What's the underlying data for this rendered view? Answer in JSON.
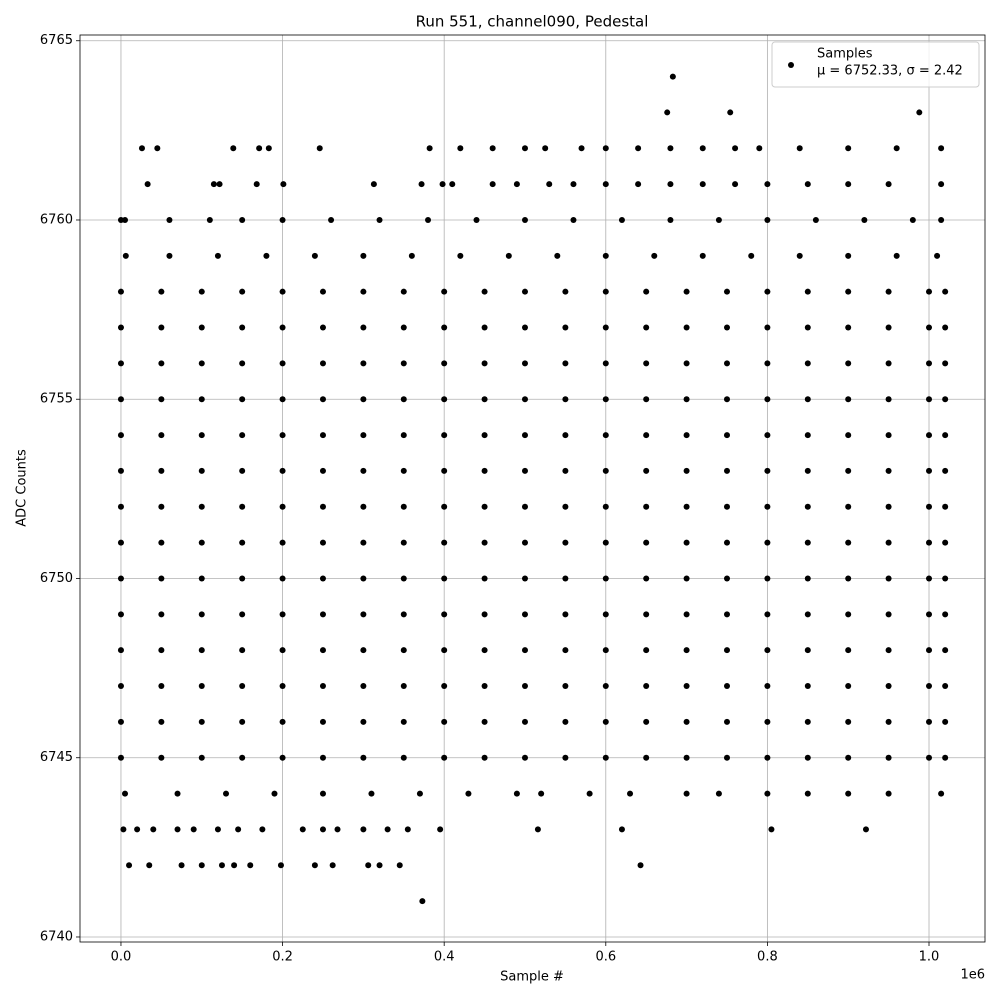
{
  "chart_data": {
    "type": "scatter",
    "title": "Run 551, channel090, Pedestal",
    "x_label": "Sample #",
    "y_label": "ADC Counts",
    "x_offset_label": "1e6",
    "xlim": [
      -50700,
      1069300
    ],
    "ylim": [
      6739.86,
      6765.16
    ],
    "xticks": [
      {
        "value": 0,
        "label": "0.0"
      },
      {
        "value": 200000,
        "label": "0.2"
      },
      {
        "value": 400000,
        "label": "0.4"
      },
      {
        "value": 600000,
        "label": "0.6"
      },
      {
        "value": 800000,
        "label": "0.8"
      },
      {
        "value": 1000000,
        "label": "1.0"
      }
    ],
    "yticks": [
      6740,
      6745,
      6750,
      6755,
      6760,
      6765
    ],
    "grid": true,
    "legend": "upper right",
    "legend_note": "μ = 6752.33, σ = 2.42",
    "series": [
      {
        "name": "Samples",
        "color": "#000000",
        "x": [
          0,
          50000,
          100000,
          150000,
          200000,
          250000,
          300000,
          350000,
          400000,
          450000,
          500000,
          550000,
          600000,
          650000,
          700000,
          750000,
          800000,
          850000,
          900000,
          950000,
          1000000,
          1020000,
          0,
          50000,
          100000,
          150000,
          200000,
          250000,
          300000,
          350000,
          400000,
          450000,
          500000,
          550000,
          600000,
          650000,
          700000,
          750000,
          800000,
          850000,
          900000,
          950000,
          1000000,
          1020000,
          0,
          50000,
          100000,
          150000,
          200000,
          250000,
          300000,
          350000,
          400000,
          450000,
          500000,
          550000,
          600000,
          650000,
          700000,
          750000,
          800000,
          850000,
          900000,
          950000,
          1000000,
          1020000,
          0,
          50000,
          100000,
          150000,
          200000,
          250000,
          300000,
          350000,
          400000,
          450000,
          500000,
          550000,
          600000,
          650000,
          700000,
          750000,
          800000,
          850000,
          900000,
          950000,
          1000000,
          1020000,
          0,
          50000,
          100000,
          150000,
          200000,
          250000,
          300000,
          350000,
          400000,
          450000,
          500000,
          550000,
          600000,
          650000,
          700000,
          750000,
          800000,
          850000,
          900000,
          950000,
          1000000,
          1020000,
          0,
          50000,
          100000,
          150000,
          200000,
          250000,
          300000,
          350000,
          400000,
          450000,
          500000,
          550000,
          600000,
          650000,
          700000,
          750000,
          800000,
          850000,
          900000,
          950000,
          1000000,
          1020000,
          0,
          50000,
          100000,
          150000,
          200000,
          250000,
          300000,
          350000,
          400000,
          450000,
          500000,
          550000,
          600000,
          650000,
          700000,
          750000,
          800000,
          850000,
          900000,
          950000,
          1000000,
          1020000,
          0,
          50000,
          100000,
          150000,
          200000,
          250000,
          300000,
          350000,
          400000,
          450000,
          500000,
          550000,
          600000,
          650000,
          700000,
          750000,
          800000,
          850000,
          900000,
          950000,
          1000000,
          1020000,
          0,
          50000,
          100000,
          150000,
          200000,
          250000,
          300000,
          350000,
          400000,
          450000,
          500000,
          550000,
          600000,
          650000,
          700000,
          750000,
          800000,
          850000,
          900000,
          950000,
          1000000,
          1020000,
          0,
          50000,
          100000,
          150000,
          200000,
          250000,
          300000,
          350000,
          400000,
          450000,
          500000,
          550000,
          600000,
          650000,
          700000,
          750000,
          800000,
          850000,
          900000,
          950000,
          1000000,
          1020000,
          0,
          50000,
          100000,
          150000,
          200000,
          250000,
          300000,
          350000,
          400000,
          450000,
          500000,
          550000,
          600000,
          650000,
          700000,
          750000,
          800000,
          850000,
          900000,
          950000,
          1000000,
          1020000,
          0,
          50000,
          100000,
          150000,
          200000,
          250000,
          300000,
          350000,
          400000,
          450000,
          500000,
          550000,
          600000,
          650000,
          700000,
          750000,
          800000,
          850000,
          900000,
          950000,
          1000000,
          1020000,
          0,
          50000,
          100000,
          150000,
          200000,
          250000,
          300000,
          350000,
          400000,
          450000,
          500000,
          550000,
          600000,
          650000,
          700000,
          750000,
          800000,
          850000,
          900000,
          950000,
          1000000,
          1020000,
          0,
          50000,
          100000,
          150000,
          200000,
          250000,
          300000,
          350000,
          400000,
          450000,
          500000,
          550000,
          600000,
          650000,
          700000,
          750000,
          800000,
          850000,
          900000,
          950000,
          1000000,
          1020000,
          6000,
          60000,
          120000,
          180000,
          240000,
          300000,
          360000,
          420000,
          480000,
          540000,
          600000,
          660000,
          720000,
          780000,
          840000,
          900000,
          960000,
          1010000,
          0,
          5000,
          60000,
          110000,
          150000,
          200000,
          260000,
          320000,
          380000,
          440000,
          500000,
          560000,
          620000,
          680000,
          740000,
          800000,
          860000,
          920000,
          980000,
          1015000,
          5000,
          70000,
          130000,
          190000,
          250000,
          310000,
          370000,
          430000,
          490000,
          520000,
          580000,
          630000,
          700000,
          740000,
          800000,
          850000,
          900000,
          950000,
          1015000,
          33000,
          115000,
          122000,
          168000,
          201000,
          313000,
          372000,
          398000,
          410000,
          460000,
          490000,
          530000,
          560000,
          600000,
          640000,
          680000,
          720000,
          760000,
          800000,
          850000,
          900000,
          950000,
          1015000,
          26000,
          45000,
          139000,
          171000,
          183000,
          246000,
          382000,
          420000,
          460000,
          500000,
          525000,
          570000,
          600000,
          640000,
          680000,
          720000,
          760000,
          790000,
          840000,
          900000,
          960000,
          1015000,
          676000,
          754000,
          988000,
          683000,
          3000,
          20000,
          40000,
          70000,
          90000,
          120000,
          145000,
          175000,
          225000,
          250000,
          268000,
          300000,
          330000,
          355000,
          395000,
          516000,
          620000,
          805000,
          922000,
          10000,
          35000,
          75000,
          100000,
          125000,
          140000,
          160000,
          198000,
          240000,
          262000,
          306000,
          320000,
          345000,
          643000,
          373000
        ],
        "values": [
          6745,
          6745,
          6745,
          6745,
          6745,
          6745,
          6745,
          6745,
          6745,
          6745,
          6745,
          6745,
          6745,
          6745,
          6745,
          6745,
          6745,
          6745,
          6745,
          6745,
          6745,
          6745,
          6746,
          6746,
          6746,
          6746,
          6746,
          6746,
          6746,
          6746,
          6746,
          6746,
          6746,
          6746,
          6746,
          6746,
          6746,
          6746,
          6746,
          6746,
          6746,
          6746,
          6746,
          6746,
          6747,
          6747,
          6747,
          6747,
          6747,
          6747,
          6747,
          6747,
          6747,
          6747,
          6747,
          6747,
          6747,
          6747,
          6747,
          6747,
          6747,
          6747,
          6747,
          6747,
          6747,
          6747,
          6748,
          6748,
          6748,
          6748,
          6748,
          6748,
          6748,
          6748,
          6748,
          6748,
          6748,
          6748,
          6748,
          6748,
          6748,
          6748,
          6748,
          6748,
          6748,
          6748,
          6748,
          6748,
          6749,
          6749,
          6749,
          6749,
          6749,
          6749,
          6749,
          6749,
          6749,
          6749,
          6749,
          6749,
          6749,
          6749,
          6749,
          6749,
          6749,
          6749,
          6749,
          6749,
          6749,
          6749,
          6750,
          6750,
          6750,
          6750,
          6750,
          6750,
          6750,
          6750,
          6750,
          6750,
          6750,
          6750,
          6750,
          6750,
          6750,
          6750,
          6750,
          6750,
          6750,
          6750,
          6750,
          6750,
          6751,
          6751,
          6751,
          6751,
          6751,
          6751,
          6751,
          6751,
          6751,
          6751,
          6751,
          6751,
          6751,
          6751,
          6751,
          6751,
          6751,
          6751,
          6751,
          6751,
          6751,
          6751,
          6752,
          6752,
          6752,
          6752,
          6752,
          6752,
          6752,
          6752,
          6752,
          6752,
          6752,
          6752,
          6752,
          6752,
          6752,
          6752,
          6752,
          6752,
          6752,
          6752,
          6752,
          6752,
          6753,
          6753,
          6753,
          6753,
          6753,
          6753,
          6753,
          6753,
          6753,
          6753,
          6753,
          6753,
          6753,
          6753,
          6753,
          6753,
          6753,
          6753,
          6753,
          6753,
          6753,
          6753,
          6754,
          6754,
          6754,
          6754,
          6754,
          6754,
          6754,
          6754,
          6754,
          6754,
          6754,
          6754,
          6754,
          6754,
          6754,
          6754,
          6754,
          6754,
          6754,
          6754,
          6754,
          6754,
          6755,
          6755,
          6755,
          6755,
          6755,
          6755,
          6755,
          6755,
          6755,
          6755,
          6755,
          6755,
          6755,
          6755,
          6755,
          6755,
          6755,
          6755,
          6755,
          6755,
          6755,
          6755,
          6756,
          6756,
          6756,
          6756,
          6756,
          6756,
          6756,
          6756,
          6756,
          6756,
          6756,
          6756,
          6756,
          6756,
          6756,
          6756,
          6756,
          6756,
          6756,
          6756,
          6756,
          6756,
          6757,
          6757,
          6757,
          6757,
          6757,
          6757,
          6757,
          6757,
          6757,
          6757,
          6757,
          6757,
          6757,
          6757,
          6757,
          6757,
          6757,
          6757,
          6757,
          6757,
          6757,
          6757,
          6758,
          6758,
          6758,
          6758,
          6758,
          6758,
          6758,
          6758,
          6758,
          6758,
          6758,
          6758,
          6758,
          6758,
          6758,
          6758,
          6758,
          6758,
          6758,
          6758,
          6758,
          6758,
          6759,
          6759,
          6759,
          6759,
          6759,
          6759,
          6759,
          6759,
          6759,
          6759,
          6759,
          6759,
          6759,
          6759,
          6759,
          6759,
          6759,
          6759,
          6760,
          6760,
          6760,
          6760,
          6760,
          6760,
          6760,
          6760,
          6760,
          6760,
          6760,
          6760,
          6760,
          6760,
          6760,
          6760,
          6760,
          6760,
          6760,
          6760,
          6744,
          6744,
          6744,
          6744,
          6744,
          6744,
          6744,
          6744,
          6744,
          6744,
          6744,
          6744,
          6744,
          6744,
          6744,
          6744,
          6744,
          6744,
          6744,
          6761,
          6761,
          6761,
          6761,
          6761,
          6761,
          6761,
          6761,
          6761,
          6761,
          6761,
          6761,
          6761,
          6761,
          6761,
          6761,
          6761,
          6761,
          6761,
          6761,
          6761,
          6761,
          6761,
          6762,
          6762,
          6762,
          6762,
          6762,
          6762,
          6762,
          6762,
          6762,
          6762,
          6762,
          6762,
          6762,
          6762,
          6762,
          6762,
          6762,
          6762,
          6762,
          6762,
          6762,
          6762,
          6763,
          6763,
          6763,
          6764,
          6743,
          6743,
          6743,
          6743,
          6743,
          6743,
          6743,
          6743,
          6743,
          6743,
          6743,
          6743,
          6743,
          6743,
          6743,
          6743,
          6743,
          6743,
          6743,
          6742,
          6742,
          6742,
          6742,
          6742,
          6742,
          6742,
          6742,
          6742,
          6742,
          6742,
          6742,
          6742,
          6742,
          6741
        ]
      }
    ]
  }
}
